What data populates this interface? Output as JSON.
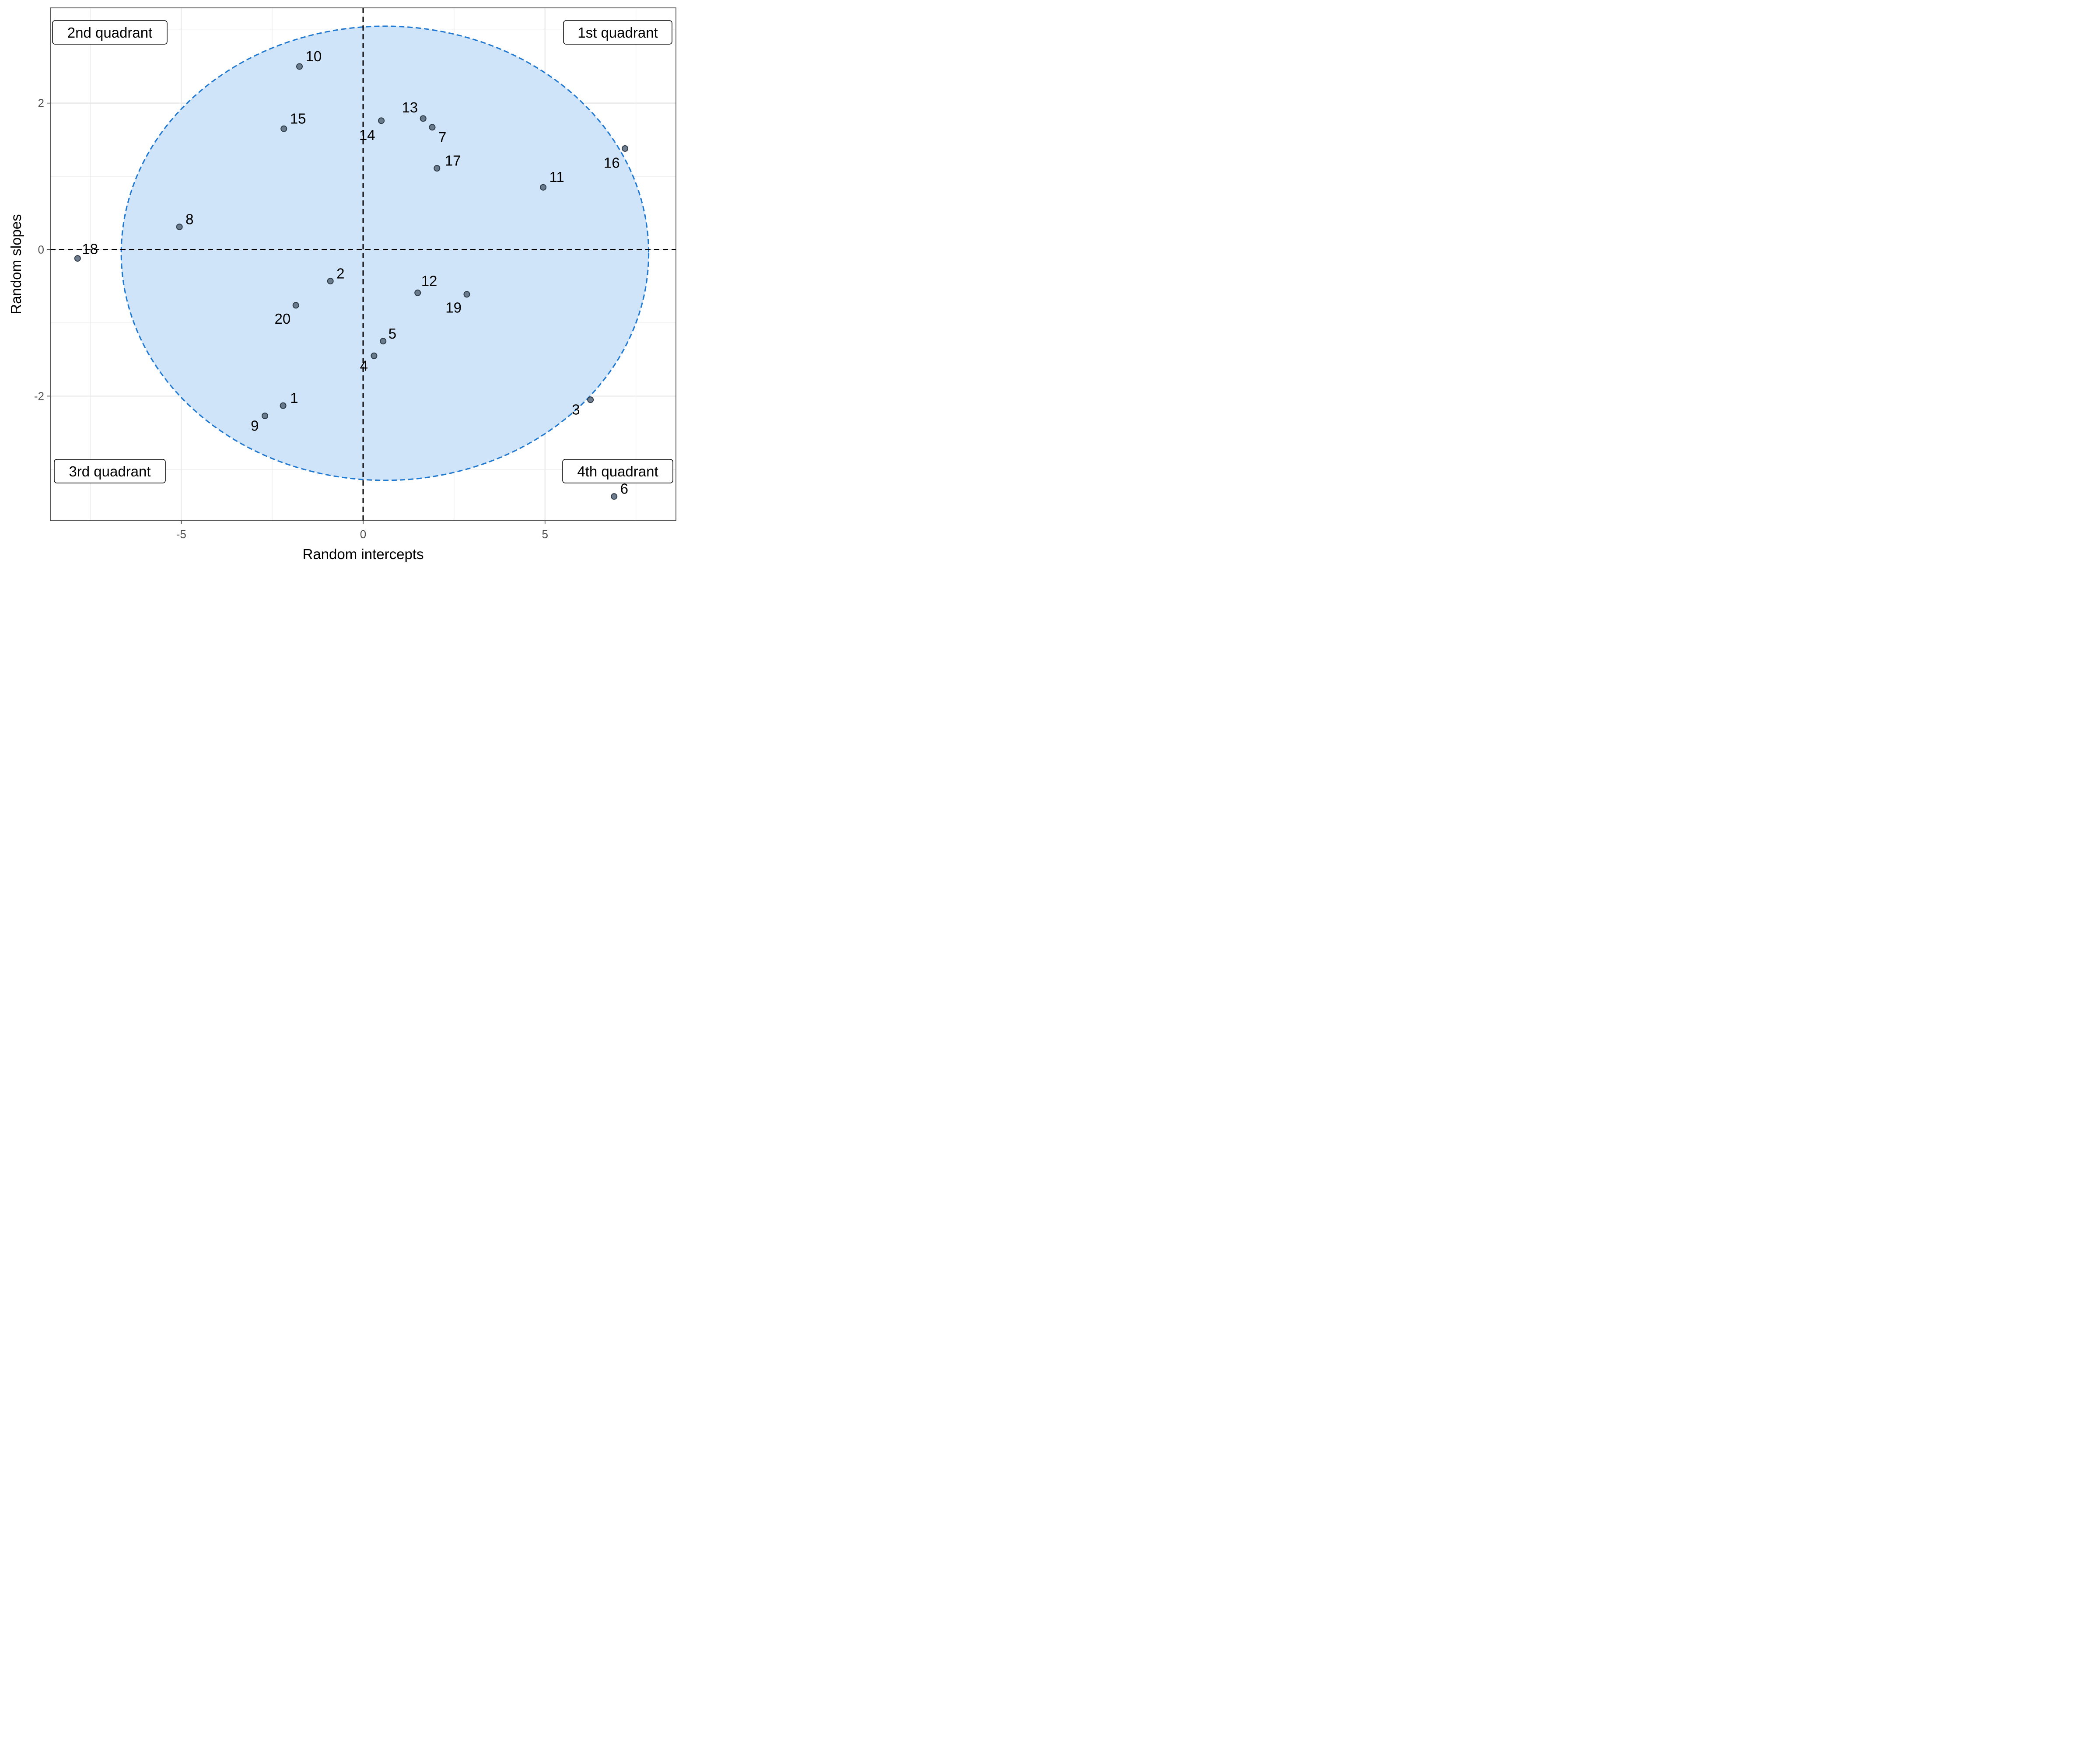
{
  "chart_data": {
    "type": "scatter",
    "xlabel": "Random intercepts",
    "ylabel": "Random slopes",
    "xlim": [
      -8.6,
      8.6
    ],
    "ylim": [
      -3.7,
      3.3
    ],
    "x_ticks": [
      -5,
      0,
      5
    ],
    "x_tick_labels": [
      "-5",
      "0",
      "5"
    ],
    "y_ticks": [
      -2,
      0,
      2
    ],
    "y_tick_labels": [
      "-2",
      "0",
      "2"
    ],
    "grid": true,
    "reference_lines": {
      "x": 0,
      "y": 0
    },
    "ellipse": {
      "center": [
        0.6,
        -0.05
      ],
      "radius_x": 7.25,
      "radius_y": 3.1
    },
    "quadrant_labels": [
      {
        "text": "1st quadrant",
        "position": "top-right"
      },
      {
        "text": "2nd quadrant",
        "position": "top-left"
      },
      {
        "text": "3rd quadrant",
        "position": "bottom-left"
      },
      {
        "text": "4th quadrant",
        "position": "bottom-right"
      }
    ],
    "points": [
      {
        "label": "1",
        "x": -2.2,
        "y": -2.13
      },
      {
        "label": "2",
        "x": -0.9,
        "y": -0.43
      },
      {
        "label": "3",
        "x": 6.25,
        "y": -2.05
      },
      {
        "label": "4",
        "x": 0.3,
        "y": -1.45
      },
      {
        "label": "5",
        "x": 0.55,
        "y": -1.25
      },
      {
        "label": "6",
        "x": 6.9,
        "y": -3.37
      },
      {
        "label": "7",
        "x": 1.9,
        "y": 1.67
      },
      {
        "label": "8",
        "x": -5.05,
        "y": 0.31
      },
      {
        "label": "9",
        "x": -2.7,
        "y": -2.27
      },
      {
        "label": "10",
        "x": -1.75,
        "y": 2.5
      },
      {
        "label": "11",
        "x": 4.95,
        "y": 0.85
      },
      {
        "label": "12",
        "x": 1.5,
        "y": -0.59
      },
      {
        "label": "13",
        "x": 1.65,
        "y": 1.79
      },
      {
        "label": "14",
        "x": 0.5,
        "y": 1.76
      },
      {
        "label": "15",
        "x": -2.18,
        "y": 1.65
      },
      {
        "label": "16",
        "x": 7.2,
        "y": 1.38
      },
      {
        "label": "17",
        "x": 2.03,
        "y": 1.11
      },
      {
        "label": "18",
        "x": -7.85,
        "y": -0.12
      },
      {
        "label": "19",
        "x": 2.85,
        "y": -0.61
      },
      {
        "label": "20",
        "x": -1.85,
        "y": -0.76
      }
    ]
  }
}
